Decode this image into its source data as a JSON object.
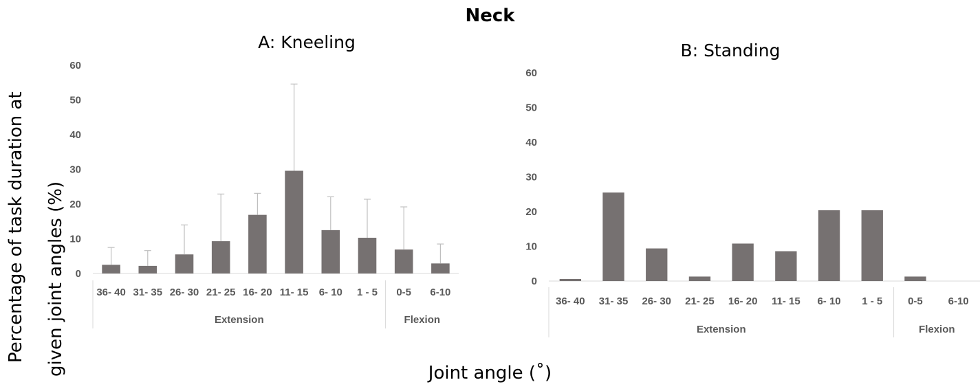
{
  "figure": {
    "title": "Neck",
    "ylabel_line1": "Percentage of task duration at",
    "ylabel_line2": "given joint angles (%)",
    "xlabel": "Joint angle (˚)"
  },
  "colors": {
    "bar": "#767171",
    "error_bar": "#bfbfbf",
    "axis": "#d9d9d9",
    "tick_text": "#595959"
  },
  "chart_data": [
    {
      "type": "bar",
      "title": "A: Kneeling",
      "categories": [
        "36- 40",
        "31- 35",
        "26- 30",
        "21- 25",
        "16- 20",
        "11- 15",
        "6- 10",
        "1 - 5",
        "0-5",
        "6-10"
      ],
      "groups": [
        {
          "label": "Extension",
          "count": 8
        },
        {
          "label": "Flexion",
          "count": 2
        }
      ],
      "values": [
        2.5,
        2.2,
        5.5,
        9.3,
        16.9,
        29.6,
        12.5,
        10.3,
        6.9,
        2.9
      ],
      "error_upper": [
        7.5,
        6.6,
        14.0,
        22.9,
        23.1,
        54.6,
        22.1,
        21.4,
        19.2,
        8.5
      ],
      "ylim": [
        0,
        60
      ],
      "yticks": [
        0,
        10,
        20,
        30,
        40,
        50,
        60
      ],
      "grid": false
    },
    {
      "type": "bar",
      "title": "B: Standing",
      "categories": [
        "36- 40",
        "31- 35",
        "26- 30",
        "21- 25",
        "16- 20",
        "11- 15",
        "6- 10",
        "1 - 5",
        "0-5",
        "6-10"
      ],
      "groups": [
        {
          "label": "Extension",
          "count": 8
        },
        {
          "label": "Flexion",
          "count": 2
        }
      ],
      "values": [
        0.6,
        25.5,
        9.4,
        1.3,
        10.8,
        8.6,
        20.4,
        20.4,
        1.3,
        0
      ],
      "ylim": [
        0,
        60
      ],
      "yticks": [
        0,
        10,
        20,
        30,
        40,
        50,
        60
      ],
      "grid": false
    }
  ]
}
